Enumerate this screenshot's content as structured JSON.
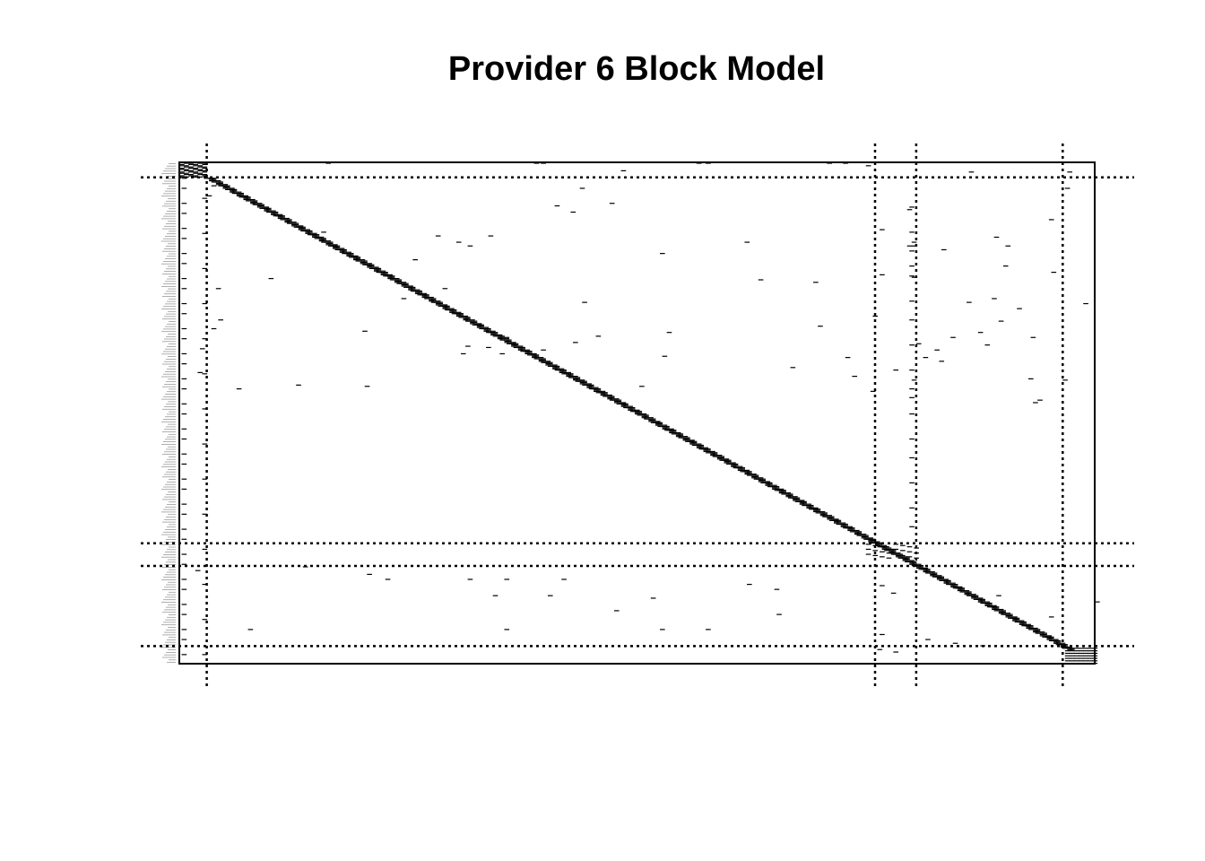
{
  "chart_data": {
    "type": "heatmap",
    "title": "Provider 6 Block Model",
    "xlabel": "",
    "ylabel": "",
    "n_nodes": 400,
    "block_boundaries": [
      12,
      304,
      322,
      399
    ],
    "grid": false,
    "legend": "none",
    "diagonal_band": {
      "start": 12,
      "end": 388
    },
    "off_diagonal_ties": [
      [
        0,
        64
      ],
      [
        0,
        155
      ],
      [
        0,
        158
      ],
      [
        0,
        226
      ],
      [
        0,
        230
      ],
      [
        0,
        283
      ],
      [
        0,
        290
      ],
      [
        2,
        300
      ],
      [
        6,
        193
      ],
      [
        7,
        345
      ],
      [
        7,
        388
      ],
      [
        18,
        14
      ],
      [
        20,
        387
      ],
      [
        20,
        175
      ],
      [
        26,
        12
      ],
      [
        32,
        188
      ],
      [
        34,
        164
      ],
      [
        37,
        318
      ],
      [
        39,
        171
      ],
      [
        45,
        380
      ],
      [
        53,
        306
      ],
      [
        59,
        356
      ],
      [
        55,
        62
      ],
      [
        58,
        112
      ],
      [
        58,
        135
      ],
      [
        63,
        121
      ],
      [
        63,
        247
      ],
      [
        63,
        320
      ],
      [
        66,
        318
      ],
      [
        66,
        320
      ],
      [
        69,
        333
      ],
      [
        66,
        361
      ],
      [
        82,
        319
      ],
      [
        82,
        360
      ],
      [
        87,
        381
      ],
      [
        89,
        306
      ],
      [
        91,
        320
      ],
      [
        66,
        126
      ],
      [
        72,
        210
      ],
      [
        77,
        102
      ],
      [
        92,
        39
      ],
      [
        93,
        253
      ],
      [
        95,
        277
      ],
      [
        100,
        16
      ],
      [
        108,
        355
      ],
      [
        111,
        176
      ],
      [
        111,
        344
      ],
      [
        112,
        395
      ],
      [
        116,
        366
      ],
      [
        122,
        303
      ],
      [
        125,
        17
      ],
      [
        126,
        358
      ],
      [
        132,
        14
      ],
      [
        135,
        349
      ],
      [
        139,
        372
      ],
      [
        144,
        322
      ],
      [
        145,
        352
      ],
      [
        149,
        330
      ],
      [
        152,
        123
      ],
      [
        155,
        291
      ],
      [
        100,
        115
      ],
      [
        108,
        97
      ],
      [
        130,
        279
      ],
      [
        135,
        213
      ],
      [
        139,
        337
      ],
      [
        148,
        9
      ],
      [
        134,
        80
      ],
      [
        138,
        182
      ],
      [
        139,
        142
      ],
      [
        143,
        172
      ],
      [
        146,
        125
      ],
      [
        147,
        134
      ],
      [
        149,
        158
      ],
      [
        154,
        211
      ],
      [
        163,
        267
      ],
      [
        167,
        8
      ],
      [
        173,
        386
      ],
      [
        152,
        140
      ],
      [
        155,
        325
      ],
      [
        158,
        332
      ],
      [
        165,
        312
      ],
      [
        170,
        294
      ],
      [
        172,
        371
      ],
      [
        177,
        51
      ],
      [
        178,
        81
      ],
      [
        178,
        201
      ],
      [
        173,
        320
      ],
      [
        180,
        25
      ],
      [
        182,
        302
      ],
      [
        187,
        319
      ],
      [
        189,
        375
      ],
      [
        191,
        373
      ]
    ],
    "lower_ties": [
      [
        322,
        54
      ],
      [
        325,
        7
      ],
      [
        328,
        82
      ],
      [
        332,
        90
      ],
      [
        332,
        126
      ],
      [
        332,
        142
      ],
      [
        332,
        167
      ],
      [
        336,
        248
      ],
      [
        340,
        260
      ],
      [
        337,
        306
      ],
      [
        343,
        311
      ],
      [
        345,
        357
      ],
      [
        350,
        400
      ],
      [
        345,
        137
      ],
      [
        345,
        161
      ],
      [
        347,
        206
      ],
      [
        357,
        190
      ],
      [
        360,
        261
      ],
      [
        362,
        380
      ],
      [
        372,
        30
      ],
      [
        372,
        142
      ],
      [
        372,
        210
      ],
      [
        372,
        230
      ],
      [
        376,
        306
      ],
      [
        380,
        326
      ],
      [
        383,
        338
      ],
      [
        385,
        350
      ],
      [
        388,
        305
      ],
      [
        390,
        312
      ]
    ]
  }
}
